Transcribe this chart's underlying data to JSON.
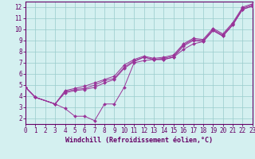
{
  "xlabel": "Windchill (Refroidissement éolien,°C)",
  "bg_color": "#d4f0f0",
  "grid_color": "#99cccc",
  "line_color": "#993399",
  "spine_color": "#660066",
  "xlim": [
    0,
    23
  ],
  "ylim": [
    1.5,
    12.5
  ],
  "xticks": [
    0,
    1,
    2,
    3,
    4,
    5,
    6,
    7,
    8,
    9,
    10,
    11,
    12,
    13,
    14,
    15,
    16,
    17,
    18,
    19,
    20,
    21,
    22,
    23
  ],
  "yticks": [
    2,
    3,
    4,
    5,
    6,
    7,
    8,
    9,
    10,
    11,
    12
  ],
  "line1_x": [
    0,
    1,
    3,
    4,
    5,
    6,
    7,
    8,
    9,
    10,
    11,
    12,
    13,
    14,
    15,
    16,
    17,
    18,
    19,
    20,
    21,
    22,
    23
  ],
  "line1_y": [
    4.8,
    3.9,
    3.3,
    2.9,
    2.2,
    2.2,
    1.8,
    3.3,
    3.3,
    4.8,
    7.0,
    7.2,
    7.3,
    7.3,
    7.5,
    8.2,
    8.7,
    8.9,
    9.9,
    9.4,
    10.4,
    11.8,
    12.1
  ],
  "line2_x": [
    0,
    1,
    3,
    4,
    5,
    6,
    7,
    8,
    9,
    10,
    11,
    12,
    13,
    14,
    15,
    16,
    17,
    18,
    19,
    20,
    21,
    22,
    23
  ],
  "line2_y": [
    4.8,
    3.9,
    3.3,
    4.3,
    4.5,
    4.6,
    4.8,
    5.2,
    5.5,
    6.5,
    7.1,
    7.5,
    7.3,
    7.3,
    7.5,
    8.5,
    9.0,
    8.9,
    9.9,
    9.4,
    10.4,
    11.8,
    12.1
  ],
  "line3_x": [
    0,
    1,
    3,
    4,
    5,
    6,
    7,
    8,
    9,
    10,
    11,
    12,
    13,
    14,
    15,
    16,
    17,
    18,
    19,
    20,
    21,
    22,
    23
  ],
  "line3_y": [
    4.8,
    3.9,
    3.3,
    4.4,
    4.6,
    4.7,
    5.0,
    5.4,
    5.6,
    6.6,
    7.2,
    7.5,
    7.3,
    7.4,
    7.6,
    8.6,
    9.1,
    9.0,
    10.0,
    9.5,
    10.5,
    11.9,
    12.2
  ],
  "line4_x": [
    0,
    1,
    3,
    4,
    5,
    6,
    7,
    8,
    9,
    10,
    11,
    12,
    13,
    14,
    15,
    16,
    17,
    18,
    19,
    20,
    21,
    22,
    23
  ],
  "line4_y": [
    4.8,
    3.9,
    3.3,
    4.5,
    4.7,
    4.9,
    5.2,
    5.5,
    5.8,
    6.8,
    7.3,
    7.6,
    7.4,
    7.5,
    7.7,
    8.7,
    9.2,
    9.1,
    10.1,
    9.6,
    10.6,
    12.0,
    12.3
  ],
  "tick_fontsize": 5.5,
  "xlabel_fontsize": 6.0,
  "linewidth": 0.7,
  "markersize": 2.0
}
